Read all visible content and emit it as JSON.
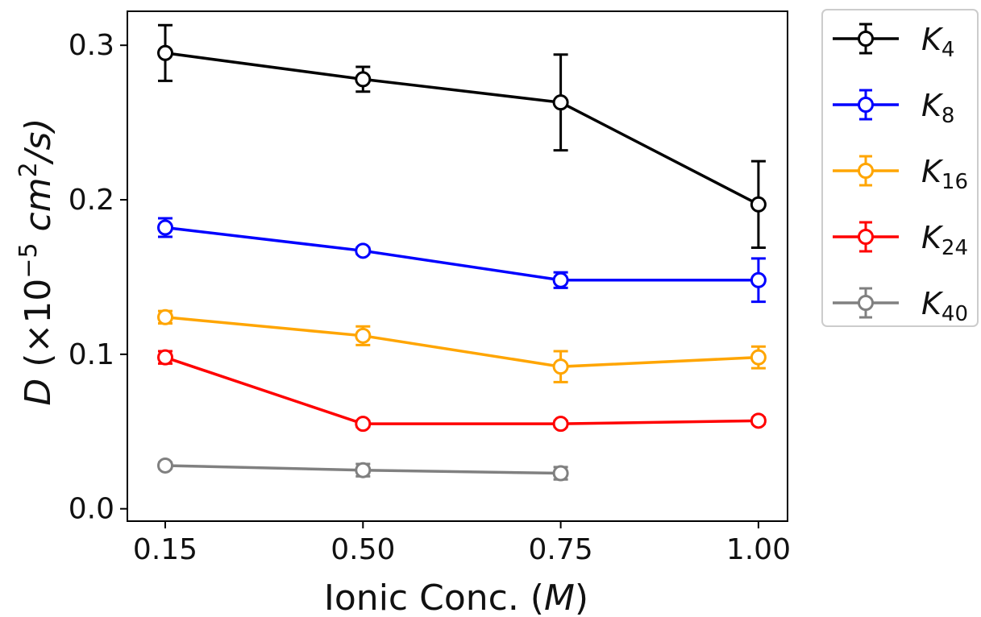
{
  "chart_data": {
    "type": "line",
    "x": [
      0.15,
      0.5,
      0.75,
      1.0
    ],
    "x_tick_labels": [
      "0.15",
      "0.50",
      "0.75",
      "1.00"
    ],
    "y_ticks": [
      0.0,
      0.1,
      0.2,
      0.3
    ],
    "y_tick_labels": [
      "0.0",
      "0.1",
      "0.2",
      "0.3"
    ],
    "ylim": [
      -0.008,
      0.322
    ],
    "xlabel": {
      "prefix": "Ionic Conc. (",
      "italic": "M",
      "suffix": ")"
    },
    "ylabel": {
      "italic": "D",
      "prefix": " (×10",
      "sup": "−5",
      "mid": " cm",
      "sup2": "2",
      "suffix": "/s)"
    },
    "legend_position": "outside-top-right",
    "grid": false,
    "series": [
      {
        "name": "K",
        "subscript": "4",
        "color": "#000000",
        "x": [
          0.15,
          0.5,
          0.75,
          1.0
        ],
        "y": [
          0.295,
          0.278,
          0.263,
          0.197
        ],
        "err": [
          0.018,
          0.008,
          0.031,
          0.028
        ]
      },
      {
        "name": "K",
        "subscript": "8",
        "color": "#0000ff",
        "x": [
          0.15,
          0.5,
          0.75,
          1.0
        ],
        "y": [
          0.182,
          0.167,
          0.148,
          0.148
        ],
        "err": [
          0.006,
          0.002,
          0.005,
          0.014
        ]
      },
      {
        "name": "K",
        "subscript": "16",
        "color": "#ffa500",
        "x": [
          0.15,
          0.5,
          0.75,
          1.0
        ],
        "y": [
          0.124,
          0.112,
          0.092,
          0.098
        ],
        "err": [
          0.004,
          0.006,
          0.01,
          0.007
        ]
      },
      {
        "name": "K",
        "subscript": "24",
        "color": "#ff0000",
        "x": [
          0.15,
          0.5,
          0.75,
          1.0
        ],
        "y": [
          0.098,
          0.055,
          0.055,
          0.057
        ],
        "err": [
          0.004,
          0.002,
          0.002,
          0.002
        ]
      },
      {
        "name": "K",
        "subscript": "40",
        "color": "#808080",
        "x": [
          0.15,
          0.5,
          0.75
        ],
        "y": [
          0.028,
          0.025,
          0.023
        ],
        "err": [
          0.002,
          0.004,
          0.004
        ]
      }
    ]
  }
}
